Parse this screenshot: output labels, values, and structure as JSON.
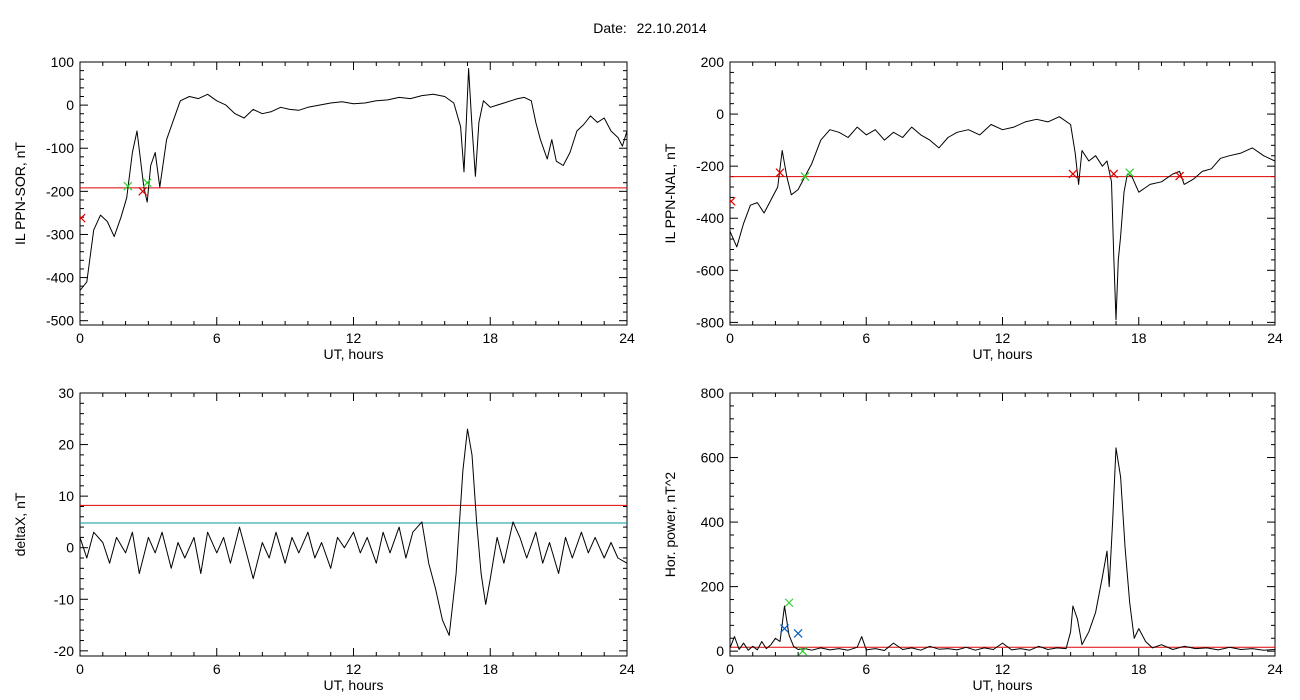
{
  "header": {
    "date_label": "Date:",
    "date_value": "22.10.2014"
  },
  "colors": {
    "black": "#000000",
    "red": "#e00000",
    "blue": "#0060c8",
    "teal": "#0098a0",
    "green": "#30d030"
  },
  "chart_data": [
    {
      "type": "line",
      "xlabel": "UT, hours",
      "ylabel": "IL PPN-SOR, nT",
      "xlim": [
        0,
        24
      ],
      "ylim": [
        -510,
        100
      ],
      "xticks": [
        0,
        6,
        12,
        18,
        24
      ],
      "yticks": [
        100,
        0,
        -100,
        -200,
        -300,
        -400,
        -500
      ],
      "threshold_red": -192,
      "series": [
        {
          "color": "black",
          "x": [
            0,
            0.3,
            0.6,
            0.9,
            1.2,
            1.5,
            1.8,
            2.05,
            2.3,
            2.5,
            2.8,
            2.95,
            3.1,
            3.3,
            3.5,
            3.8,
            4.1,
            4.4,
            4.8,
            5.2,
            5.6,
            6.0,
            6.4,
            6.8,
            7.2,
            7.6,
            8.0,
            8.4,
            8.8,
            9.2,
            9.6,
            10.0,
            10.5,
            11.0,
            11.5,
            12.0,
            12.5,
            13.0,
            13.5,
            14.0,
            14.5,
            15.0,
            15.5,
            16.0,
            16.4,
            16.7,
            16.85,
            16.95,
            17.05,
            17.2,
            17.35,
            17.5,
            17.7,
            18.0,
            18.3,
            18.6,
            18.9,
            19.2,
            19.5,
            19.8,
            20.0,
            20.2,
            20.5,
            20.7,
            20.9,
            21.2,
            21.5,
            21.8,
            22.1,
            22.4,
            22.7,
            23.0,
            23.3,
            23.6,
            23.8,
            24.0
          ],
          "y": [
            -430,
            -410,
            -290,
            -255,
            -270,
            -305,
            -260,
            -215,
            -110,
            -60,
            -190,
            -225,
            -140,
            -110,
            -190,
            -80,
            -35,
            10,
            20,
            15,
            25,
            10,
            0,
            -20,
            -30,
            -10,
            -20,
            -15,
            -5,
            -10,
            -12,
            -5,
            0,
            5,
            8,
            3,
            5,
            10,
            12,
            18,
            15,
            22,
            25,
            20,
            5,
            -50,
            -155,
            -40,
            85,
            -50,
            -165,
            -40,
            10,
            -5,
            0,
            5,
            10,
            15,
            18,
            10,
            -40,
            -80,
            -125,
            -80,
            -130,
            -140,
            -110,
            -60,
            -45,
            -25,
            -40,
            -30,
            -60,
            -75,
            -95,
            -60
          ]
        }
      ],
      "markers": [
        {
          "x": 2.1,
          "y": -188,
          "color": "green"
        },
        {
          "x": 2.75,
          "y": -200,
          "color": "red"
        },
        {
          "x": 2.95,
          "y": -180,
          "color": "green"
        },
        {
          "x": 0.05,
          "y": -262,
          "color": "red"
        }
      ]
    },
    {
      "type": "line",
      "xlabel": "UT, hours",
      "ylabel": "IL PPN-NAL, nT",
      "xlim": [
        0,
        24
      ],
      "ylim": [
        -810,
        200
      ],
      "xticks": [
        0,
        6,
        12,
        18,
        24
      ],
      "yticks": [
        200,
        0,
        -200,
        -400,
        -600,
        -800
      ],
      "threshold_red": -240,
      "series": [
        {
          "color": "black",
          "x": [
            0,
            0.3,
            0.6,
            0.9,
            1.2,
            1.5,
            1.8,
            2.1,
            2.3,
            2.5,
            2.7,
            3.0,
            3.3,
            3.6,
            4.0,
            4.4,
            4.8,
            5.2,
            5.6,
            6.0,
            6.4,
            6.8,
            7.2,
            7.6,
            8.0,
            8.4,
            8.8,
            9.2,
            9.6,
            10.0,
            10.5,
            11.0,
            11.5,
            12.0,
            12.5,
            13.0,
            13.5,
            14.0,
            14.5,
            15.0,
            15.2,
            15.35,
            15.5,
            15.8,
            16.1,
            16.4,
            16.6,
            16.8,
            16.9,
            17.0,
            17.1,
            17.2,
            17.35,
            17.5,
            17.7,
            18.0,
            18.5,
            19.0,
            19.5,
            19.8,
            20.0,
            20.4,
            20.8,
            21.2,
            21.6,
            22.0,
            22.5,
            23.0,
            23.5,
            24.0
          ],
          "y": [
            -450,
            -510,
            -420,
            -350,
            -340,
            -380,
            -330,
            -280,
            -140,
            -240,
            -310,
            -290,
            -240,
            -190,
            -100,
            -60,
            -70,
            -90,
            -50,
            -80,
            -60,
            -100,
            -70,
            -90,
            -50,
            -80,
            -100,
            -130,
            -90,
            -70,
            -60,
            -80,
            -40,
            -60,
            -50,
            -30,
            -20,
            -30,
            -10,
            -40,
            -150,
            -270,
            -140,
            -180,
            -160,
            -200,
            -180,
            -260,
            -550,
            -790,
            -560,
            -470,
            -300,
            -230,
            -240,
            -300,
            -270,
            -260,
            -230,
            -220,
            -270,
            -250,
            -220,
            -210,
            -170,
            -160,
            -150,
            -130,
            -160,
            -180
          ]
        }
      ],
      "markers": [
        {
          "x": 2.2,
          "y": -225,
          "color": "red"
        },
        {
          "x": 3.3,
          "y": -240,
          "color": "green"
        },
        {
          "x": 15.1,
          "y": -230,
          "color": "red"
        },
        {
          "x": 16.9,
          "y": -230,
          "color": "red"
        },
        {
          "x": 17.6,
          "y": -225,
          "color": "green"
        },
        {
          "x": 19.8,
          "y": -238,
          "color": "red"
        },
        {
          "x": 0.05,
          "y": -335,
          "color": "red"
        }
      ]
    },
    {
      "type": "line",
      "xlabel": "UT, hours",
      "ylabel": "deltaX, nT",
      "xlim": [
        0,
        24
      ],
      "ylim": [
        -21,
        30
      ],
      "xticks": [
        0,
        6,
        12,
        18,
        24
      ],
      "yticks": [
        30,
        20,
        10,
        0,
        -10,
        -20
      ],
      "threshold_red": 8.2,
      "threshold_teal": 4.8,
      "series": [
        {
          "color": "black",
          "x": [
            0,
            0.3,
            0.6,
            1.0,
            1.3,
            1.6,
            2.0,
            2.3,
            2.6,
            3.0,
            3.3,
            3.6,
            4.0,
            4.3,
            4.6,
            5.0,
            5.3,
            5.6,
            6.0,
            6.3,
            6.6,
            7.0,
            7.3,
            7.6,
            8.0,
            8.3,
            8.6,
            9.0,
            9.3,
            9.6,
            10.0,
            10.3,
            10.6,
            11.0,
            11.3,
            11.6,
            12.0,
            12.3,
            12.6,
            13.0,
            13.3,
            13.6,
            14.0,
            14.3,
            14.6,
            15.0,
            15.3,
            15.6,
            15.9,
            16.2,
            16.5,
            16.8,
            17.0,
            17.2,
            17.4,
            17.6,
            17.8,
            18.0,
            18.3,
            18.6,
            19.0,
            19.3,
            19.6,
            20.0,
            20.3,
            20.6,
            21.0,
            21.3,
            21.6,
            22.0,
            22.3,
            22.6,
            23.0,
            23.3,
            23.6,
            24.0
          ],
          "y": [
            2,
            -2,
            3,
            1,
            -3,
            2,
            -1,
            3,
            -5,
            2,
            -1,
            3,
            -4,
            1,
            -2,
            2,
            -5,
            3,
            -1,
            2,
            -3,
            4,
            -1,
            -6,
            1,
            -2,
            3,
            -3,
            2,
            -1,
            3,
            -2,
            1,
            -4,
            2,
            0,
            3,
            -1,
            2,
            -3,
            3,
            -1,
            4,
            -2,
            3,
            5,
            -3,
            -8,
            -14,
            -17,
            -5,
            15,
            23,
            18,
            5,
            -5,
            -11,
            -6,
            2,
            -3,
            5,
            2,
            -2,
            3,
            -3,
            1,
            -5,
            2,
            -2,
            3,
            -1,
            2,
            -2,
            1,
            -2,
            -3
          ]
        }
      ]
    },
    {
      "type": "line",
      "xlabel": "UT, hours",
      "ylabel": "Hor. power, nT^2",
      "xlim": [
        0,
        24
      ],
      "ylim": [
        -15,
        800
      ],
      "xticks": [
        0,
        6,
        12,
        18,
        24
      ],
      "yticks": [
        800,
        600,
        400,
        200,
        0
      ],
      "threshold_red": 12,
      "series": [
        {
          "color": "black",
          "x": [
            0,
            0.2,
            0.4,
            0.6,
            0.8,
            1.0,
            1.2,
            1.4,
            1.6,
            1.8,
            2.0,
            2.2,
            2.4,
            2.6,
            2.8,
            3.0,
            3.3,
            3.6,
            4.0,
            4.4,
            4.8,
            5.2,
            5.6,
            5.8,
            6.0,
            6.4,
            6.8,
            7.2,
            7.6,
            8.0,
            8.4,
            8.8,
            9.2,
            9.6,
            10.0,
            10.4,
            10.8,
            11.2,
            11.6,
            12.0,
            12.4,
            12.8,
            13.2,
            13.6,
            14.0,
            14.4,
            14.8,
            15.0,
            15.1,
            15.3,
            15.5,
            15.8,
            16.1,
            16.4,
            16.6,
            16.7,
            16.85,
            17.0,
            17.2,
            17.4,
            17.6,
            17.8,
            18.0,
            18.3,
            18.6,
            19.0,
            19.5,
            20.0,
            20.5,
            21.0,
            21.5,
            22.0,
            22.5,
            23.0,
            23.5,
            24.0
          ],
          "y": [
            10,
            45,
            5,
            25,
            3,
            15,
            4,
            30,
            8,
            20,
            40,
            30,
            140,
            50,
            15,
            5,
            8,
            3,
            10,
            4,
            8,
            3,
            12,
            45,
            4,
            8,
            2,
            25,
            5,
            10,
            3,
            15,
            6,
            8,
            4,
            12,
            3,
            10,
            5,
            25,
            4,
            8,
            3,
            15,
            5,
            10,
            8,
            60,
            140,
            100,
            20,
            60,
            120,
            230,
            310,
            200,
            400,
            630,
            540,
            320,
            150,
            40,
            70,
            30,
            10,
            20,
            5,
            15,
            8,
            10,
            4,
            12,
            5,
            8,
            3,
            5
          ]
        }
      ],
      "markers": [
        {
          "x": 2.6,
          "y": 150,
          "color": "green"
        },
        {
          "x": 2.4,
          "y": 70,
          "color": "blue"
        },
        {
          "x": 3.0,
          "y": 55,
          "color": "blue"
        },
        {
          "x": 3.2,
          "y": 0,
          "color": "green"
        }
      ]
    }
  ]
}
